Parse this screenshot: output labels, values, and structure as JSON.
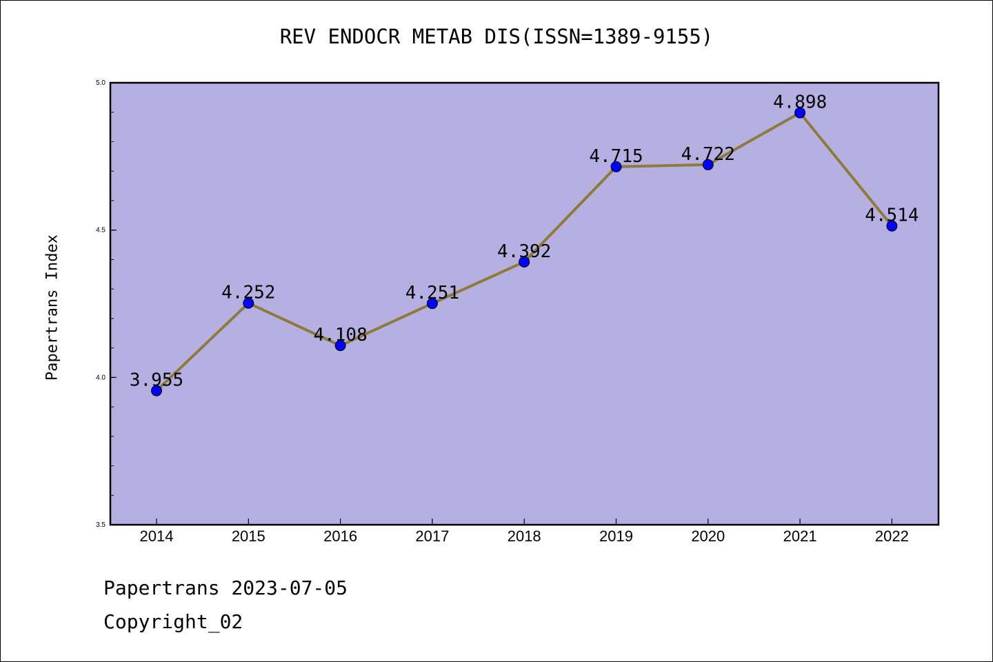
{
  "title": "REV ENDOCR METAB DIS(ISSN=1389-9155)",
  "ylabel": "Papertrans Index",
  "footer": {
    "date_line": "Papertrans 2023-07-05",
    "copyright": "Copyright_02"
  },
  "colors": {
    "plot_background": "#b5afe2",
    "line": "#8c7b3a",
    "marker": "#0000ff",
    "axes": "#000000"
  },
  "chart_data": {
    "type": "line",
    "title": "REV ENDOCR METAB DIS(ISSN=1389-9155)",
    "xlabel": "",
    "ylabel": "Papertrans Index",
    "categories": [
      "2014",
      "2015",
      "2016",
      "2017",
      "2018",
      "2019",
      "2020",
      "2021",
      "2022"
    ],
    "values": [
      3.955,
      4.252,
      4.108,
      4.251,
      4.392,
      4.715,
      4.722,
      4.898,
      4.514
    ],
    "data_labels": [
      "3.955",
      "4.252",
      "4.108",
      "4.251",
      "4.392",
      "4.715",
      "4.722",
      "4.898",
      "4.514"
    ],
    "ylim": [
      3.5,
      5.0
    ],
    "yticks": [
      "3.5",
      "4.0",
      "4.5",
      "5.0"
    ],
    "grid": false,
    "legend": "none"
  }
}
